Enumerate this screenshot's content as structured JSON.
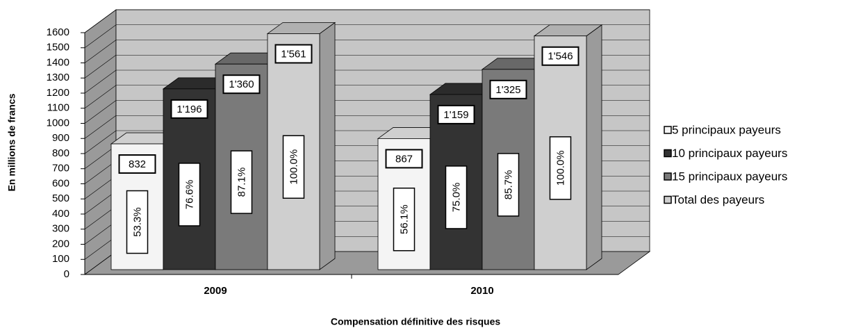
{
  "chart_data": {
    "type": "bar3d",
    "x_label": "Compensation définitive des risques",
    "y_label": "En millions de francs",
    "categories": [
      "2009",
      "2010"
    ],
    "series": [
      {
        "name": "5 principaux payeurs",
        "color": "#f4f4f4",
        "values": [
          832,
          867
        ],
        "value_labels": [
          "832",
          "867"
        ],
        "share_labels": [
          "53.3%",
          "56.1%"
        ]
      },
      {
        "name": "10 principaux payeurs",
        "color": "#333333",
        "values": [
          1196,
          1159
        ],
        "value_labels": [
          "1'196",
          "1'159"
        ],
        "share_labels": [
          "76.6%",
          "75.0%"
        ]
      },
      {
        "name": "15 principaux payeurs",
        "color": "#7a7a7a",
        "values": [
          1360,
          1325
        ],
        "value_labels": [
          "1'360",
          "1'325"
        ],
        "share_labels": [
          "87.1%",
          "85.7%"
        ]
      },
      {
        "name": "Total des payeurs",
        "color": "#cfcfcf",
        "values": [
          1561,
          1546
        ],
        "value_labels": [
          "1'561",
          "1'546"
        ],
        "share_labels": [
          "100.0%",
          "100.0%"
        ]
      }
    ],
    "ylim": [
      0,
      1600
    ],
    "yticks": [
      0,
      100,
      200,
      300,
      400,
      500,
      600,
      700,
      800,
      900,
      1000,
      1100,
      1200,
      1300,
      1400,
      1500,
      1600
    ],
    "grid": true,
    "legend": "right"
  }
}
